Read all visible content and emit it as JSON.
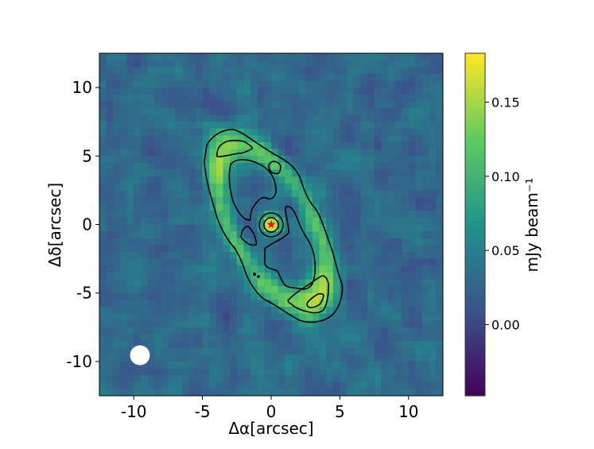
{
  "chart_data": {
    "type": "heatmap",
    "title": "",
    "xlabel": "Δα[arcsec]",
    "ylabel": "Δδ[arcsec]",
    "xlim": [
      -12.5,
      12.5
    ],
    "ylim": [
      -12.5,
      12.5
    ],
    "xticks": [
      -10,
      -5,
      0,
      5,
      10
    ],
    "yticks": [
      -10,
      -5,
      0,
      5,
      10
    ],
    "xtick_labels": [
      "-10",
      "-5",
      "0",
      "5",
      "10"
    ],
    "ytick_labels": [
      "-10",
      "-5",
      "0",
      "5",
      "10"
    ],
    "colormap": "viridis",
    "colorbar": {
      "label": "mJy beam⁻¹",
      "range": [
        -0.048,
        0.183
      ],
      "ticks": [
        0.0,
        0.05,
        0.1,
        0.15
      ],
      "tick_labels": [
        "0.00",
        "0.05",
        "0.10",
        "0.15"
      ]
    },
    "contour_color": "#000000",
    "central_source": {
      "x": 0,
      "y": 0,
      "marker": "star",
      "color": "#ff0000"
    },
    "beam": {
      "x": -9.5,
      "y": -9.6,
      "color": "#ffffff"
    },
    "grid": false
  }
}
